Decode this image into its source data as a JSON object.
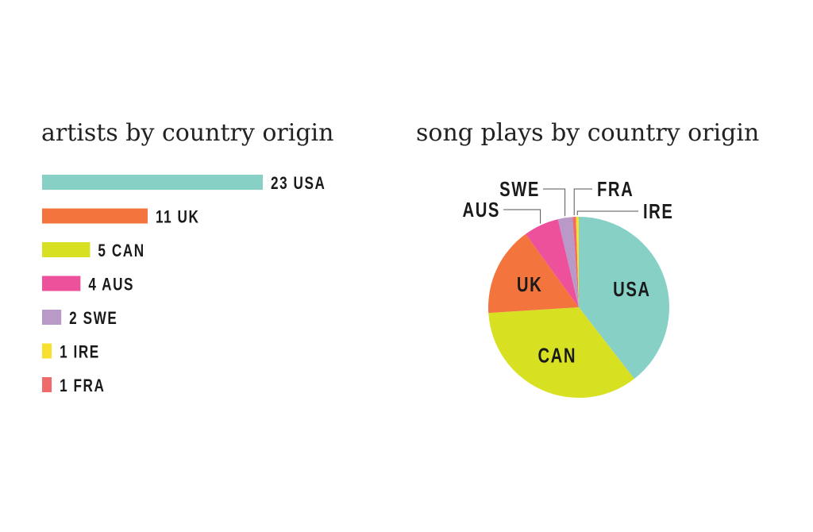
{
  "chart_data": [
    {
      "type": "bar",
      "orientation": "horizontal",
      "title": "artists by country origin",
      "categories": [
        "USA",
        "UK",
        "CAN",
        "AUS",
        "SWE",
        "IRE",
        "FRA"
      ],
      "values": [
        23,
        11,
        5,
        4,
        2,
        1,
        1
      ],
      "colors": [
        "#86d0c6",
        "#f3743d",
        "#d8e022",
        "#ee519c",
        "#b999c7",
        "#f7e02e",
        "#ef6a6a"
      ]
    },
    {
      "type": "pie",
      "title": "song plays by country origin",
      "labels": [
        "USA",
        "CAN",
        "UK",
        "AUS",
        "SWE",
        "FRA",
        "IRE"
      ],
      "values": [
        39.5,
        34.5,
        16.0,
        6.3,
        2.6,
        0.6,
        0.5
      ],
      "colors": [
        "#86d0c6",
        "#d8e022",
        "#f3743d",
        "#ee519c",
        "#b999c7",
        "#ef6a6a",
        "#f7e02e"
      ],
      "start": "top",
      "direction": "clockwise"
    }
  ]
}
